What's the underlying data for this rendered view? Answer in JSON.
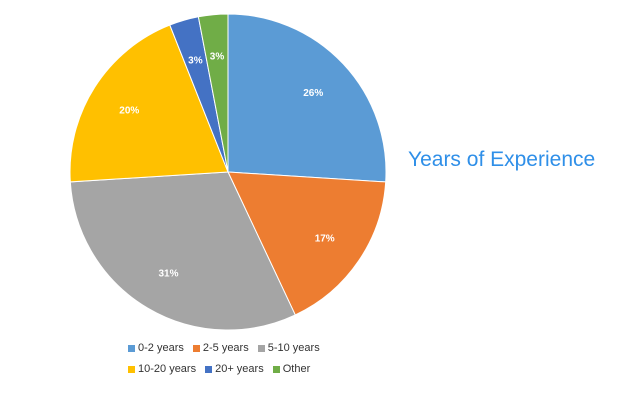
{
  "chart_data": {
    "type": "pie",
    "title": "Years of Experience",
    "categories": [
      "0-2 years",
      "2-5 years",
      "5-10 years",
      "10-20 years",
      "20+ years",
      "Other"
    ],
    "values": [
      26,
      17,
      31,
      20,
      3,
      3
    ],
    "value_labels": [
      "26%",
      "17%",
      "31%",
      "20%",
      "3%",
      "3%"
    ],
    "colors": [
      "#5b9bd5",
      "#ed7d31",
      "#a5a5a5",
      "#ffc000",
      "#4472c4",
      "#70ad47"
    ],
    "legend_position": "bottom",
    "legend_rows": [
      [
        "0-2 years",
        "2-5 years",
        "5-10 years"
      ],
      [
        "10-20 years",
        "20+ years",
        "Other"
      ]
    ]
  }
}
